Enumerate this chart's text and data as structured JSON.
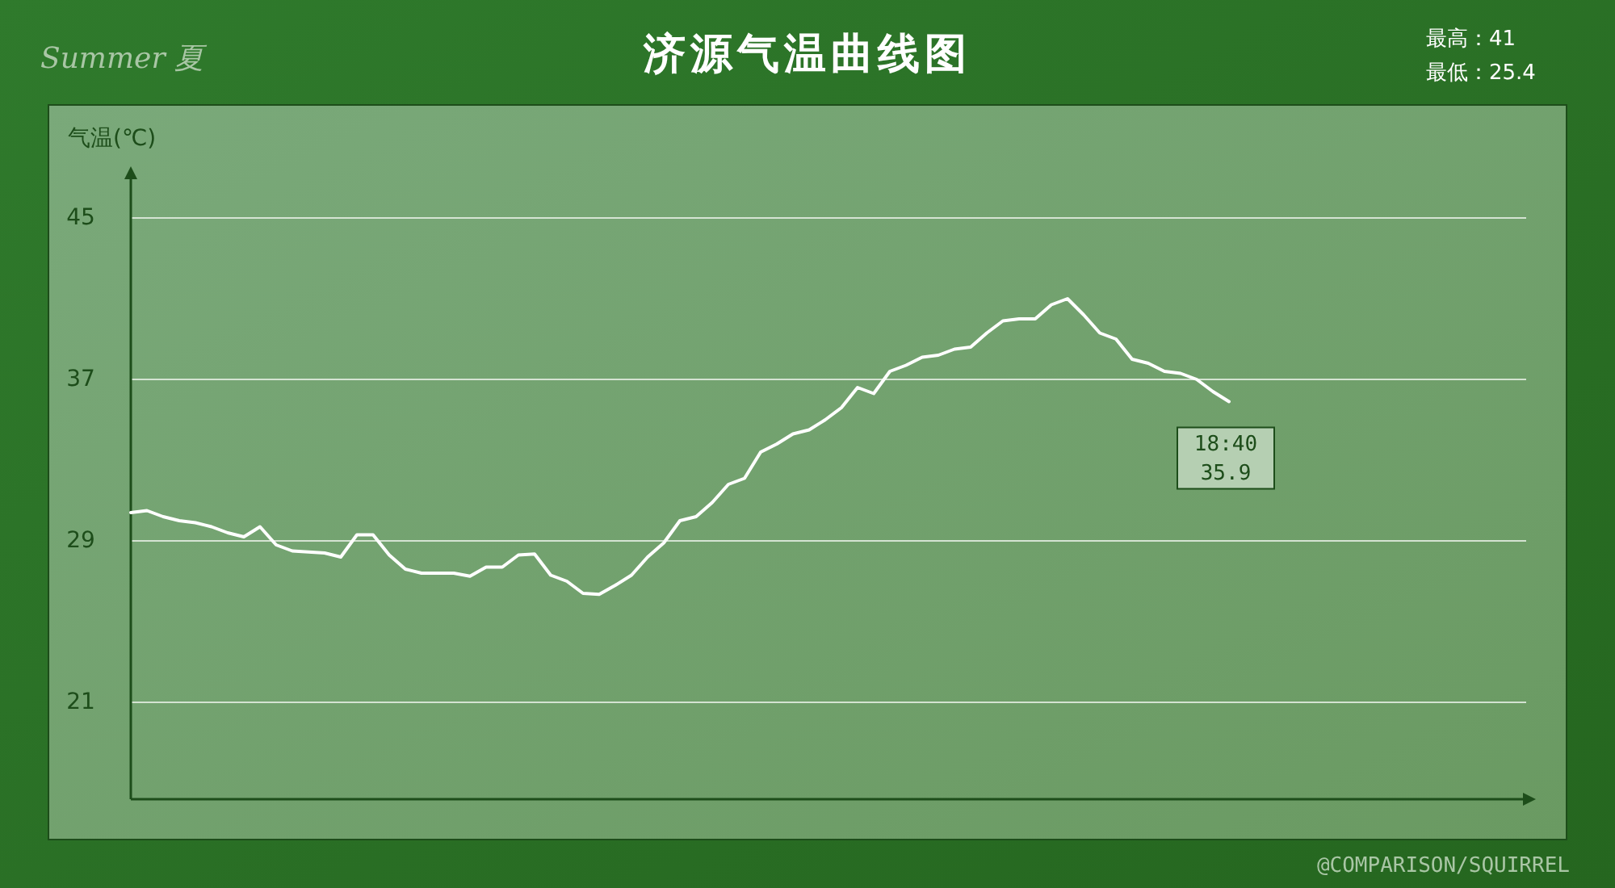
{
  "chart_data": {
    "type": "line",
    "title": "济源气温曲线图",
    "ylabel": "气温(℃)",
    "annotations": [
      "Summer 夏",
      "最高：41",
      "最低：25.4",
      "@COMPARISON/SQUIRREL",
      {
        "text": "18:40\n35.9",
        "y": 35.9
      }
    ],
    "categories": [
      null,
      null,
      null,
      null,
      null,
      null,
      null,
      null,
      null,
      null,
      null,
      null,
      null,
      null,
      null,
      null,
      null,
      null,
      null,
      null,
      null,
      null,
      null,
      null,
      null,
      null,
      null,
      null,
      null,
      null,
      null,
      null,
      null,
      null,
      null,
      null,
      null,
      null,
      null,
      null,
      null,
      null,
      null,
      null,
      null,
      null,
      null,
      null,
      null,
      null,
      null,
      null,
      null,
      null,
      null,
      null,
      null,
      null,
      null,
      null,
      null,
      null,
      null,
      null,
      null,
      null,
      null,
      null,
      null,
      null,
      null,
      null,
      null,
      null,
      null,
      null,
      null,
      null,
      null,
      null,
      null,
      null,
      null,
      null,
      null,
      null
    ],
    "series": [
      {
        "color": "#ffffff",
        "values": [
          30.4,
          30.5,
          30.2,
          30.0,
          29.9,
          29.7,
          29.4,
          29.2,
          29.7,
          28.8,
          28.5,
          28.45,
          28.4,
          28.2,
          29.3,
          29.3,
          28.3,
          27.6,
          27.4,
          27.4,
          27.4,
          27.25,
          27.7,
          27.7,
          28.3,
          28.35,
          27.3,
          27.0,
          26.4,
          26.35,
          26.8,
          27.3,
          28.2,
          28.9,
          30.0,
          30.2,
          30.9,
          31.8,
          32.1,
          33.4,
          33.8,
          34.3,
          34.5,
          35.0,
          35.6,
          36.6,
          36.3,
          37.4,
          37.7,
          38.1,
          38.2,
          38.5,
          38.6,
          39.3,
          39.9,
          40.0,
          40.0,
          40.7,
          41.0,
          40.2,
          39.3,
          39.0,
          38.0,
          37.8,
          37.4,
          37.3,
          37.0,
          36.4,
          35.9,
          null,
          null,
          null,
          null,
          null,
          null,
          null,
          null,
          null,
          null,
          null,
          null,
          null,
          null,
          null,
          null,
          null
        ]
      }
    ],
    "ylim": [
      16.2,
      47.4
    ],
    "yticks": [
      21,
      29,
      37,
      45
    ],
    "grid": "y"
  }
}
